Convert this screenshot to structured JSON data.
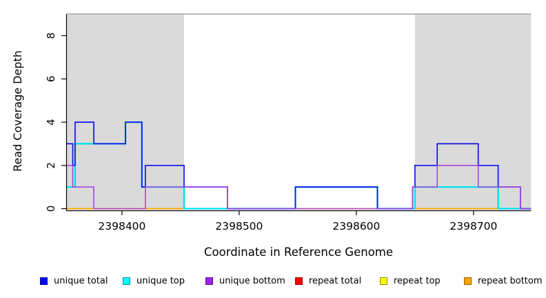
{
  "figure": {
    "background": "#ffffff",
    "plot_bg": "#ffffff",
    "highlight_color": "#dadada",
    "top_border_color": "#9c9c9c",
    "axis_color": "#000000"
  },
  "y_axis": {
    "label": "Read Coverage Depth",
    "ticks": [
      0,
      2,
      4,
      6,
      8
    ],
    "min": 0,
    "max": 9
  },
  "x_axis": {
    "label": "Coordinate in Reference Genome",
    "ticks": [
      2398400,
      2398500,
      2398600,
      2398700
    ],
    "min": 2398353,
    "max": 2398749
  },
  "chart_data": {
    "type": "line",
    "step": true,
    "title": "",
    "xlabel": "Coordinate in Reference Genome",
    "ylabel": "Read Coverage Depth",
    "xlim": [
      2398353,
      2398749
    ],
    "ylim": [
      0,
      9
    ],
    "grid": false,
    "legend_position": "bottom",
    "highlight_regions": [
      {
        "start": 2398353,
        "end": 2398453
      },
      {
        "start": 2398650,
        "end": 2398749
      }
    ],
    "x_end": 2398749,
    "series": [
      {
        "name": "unique total",
        "color": "#1212e8",
        "points": [
          [
            2398353,
            3
          ],
          [
            2398358,
            2
          ],
          [
            2398360,
            4
          ],
          [
            2398376,
            3
          ],
          [
            2398403,
            4
          ],
          [
            2398417,
            1
          ],
          [
            2398420,
            2
          ],
          [
            2398453,
            1
          ],
          [
            2398490,
            0
          ],
          [
            2398548,
            1
          ],
          [
            2398618,
            0
          ],
          [
            2398648,
            1
          ],
          [
            2398650,
            2
          ],
          [
            2398669,
            3
          ],
          [
            2398704,
            2
          ],
          [
            2398721,
            1
          ],
          [
            2398740,
            0
          ]
        ]
      },
      {
        "name": "unique top",
        "color": "#00e0ea",
        "points": [
          [
            2398353,
            1
          ],
          [
            2398360,
            3
          ],
          [
            2398403,
            4
          ],
          [
            2398417,
            1
          ],
          [
            2398453,
            0
          ],
          [
            2398548,
            1
          ],
          [
            2398618,
            0
          ],
          [
            2398650,
            1
          ],
          [
            2398721,
            0
          ]
        ]
      },
      {
        "name": "unique bottom",
        "color": "#a646e0",
        "points": [
          [
            2398353,
            2
          ],
          [
            2398358,
            1
          ],
          [
            2398376,
            0
          ],
          [
            2398420,
            1
          ],
          [
            2398490,
            0
          ],
          [
            2398648,
            1
          ],
          [
            2398669,
            2
          ],
          [
            2398704,
            1
          ],
          [
            2398740,
            0
          ]
        ]
      },
      {
        "name": "repeat total",
        "color": "#e02222",
        "points": [
          [
            2398353,
            0
          ]
        ]
      },
      {
        "name": "repeat top",
        "color": "#f5f500",
        "points": [
          [
            2398353,
            0
          ]
        ]
      },
      {
        "name": "repeat bottom",
        "color": "#ffa500",
        "points": [
          [
            2398353,
            0
          ]
        ]
      }
    ]
  },
  "legend": {
    "items": [
      {
        "label": "unique total",
        "color": "#0000ff",
        "border": "#000090"
      },
      {
        "label": "unique top",
        "color": "#00ffff",
        "border": "#008d96"
      },
      {
        "label": "unique bottom",
        "color": "#a020f0",
        "border": "#5c1090"
      },
      {
        "label": "repeat total",
        "color": "#ff0000",
        "border": "#900000"
      },
      {
        "label": "repeat top",
        "color": "#ffff00",
        "border": "#8d8d00"
      },
      {
        "label": "repeat bottom",
        "color": "#ffa500",
        "border": "#965f00"
      }
    ]
  }
}
